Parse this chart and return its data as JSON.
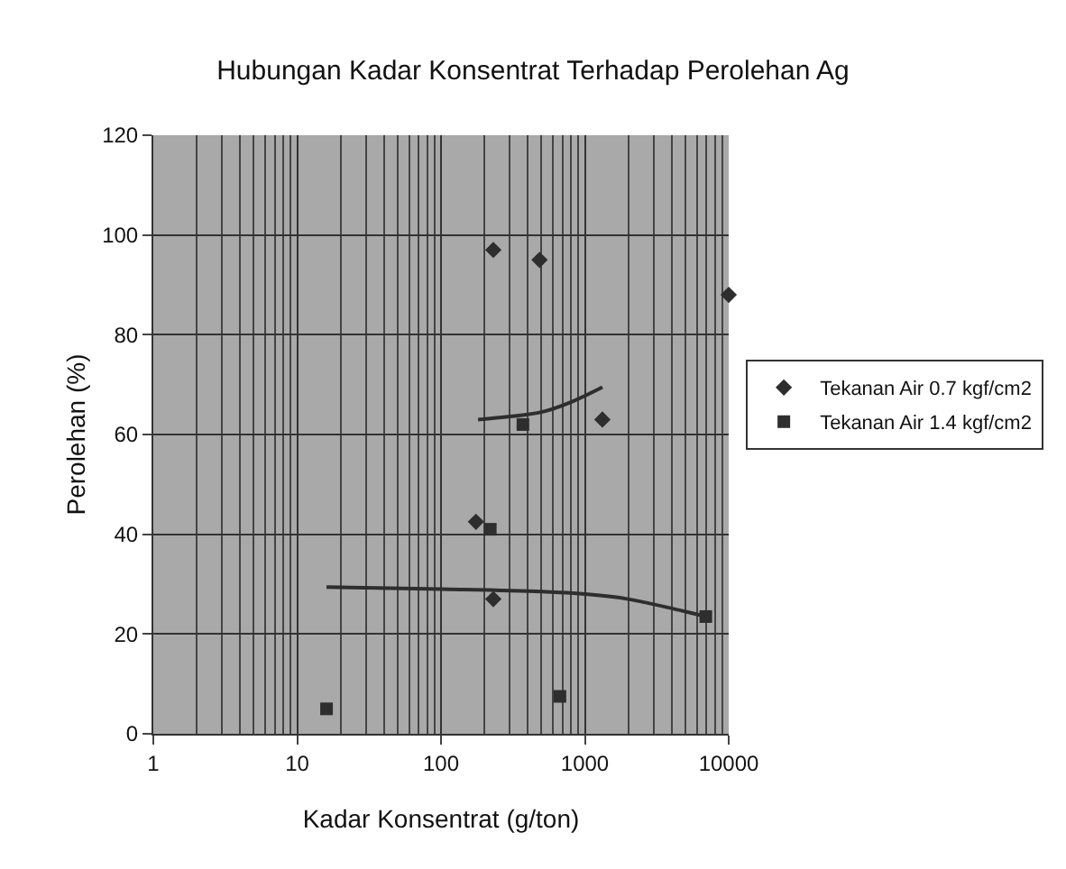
{
  "chart_data": {
    "type": "scatter",
    "title": "Hubungan Kadar Konsentrat Terhadap Perolehan Ag",
    "xlabel": "Kadar Konsentrat (g/ton)",
    "ylabel": "Perolehan (%)",
    "log": "x",
    "xlim": [
      1,
      10000
    ],
    "xticks": [
      1,
      10,
      100,
      1000,
      10000
    ],
    "ylim": [
      0,
      120
    ],
    "yticks": [
      0,
      20,
      40,
      60,
      80,
      100,
      120
    ],
    "grid": true,
    "legend": "right",
    "series": [
      {
        "name": "Tekanan Air 0.7 kgf/cm2",
        "color": "#2e2e2e",
        "marker": "diamond",
        "x": [
          231,
          484,
          1324,
          175,
          231,
          10000
        ],
        "values": [
          97,
          95,
          63,
          42.5,
          27,
          88
        ]
      },
      {
        "name": "Tekanan Air 1.4 kgf/cm2",
        "color": "#2e2e2e",
        "marker": "square",
        "x": [
          16,
          220,
          371,
          671,
          6930
        ],
        "values": [
          5,
          41,
          62,
          7.5,
          23.5
        ]
      },
      {
        "type": "line",
        "color": "#2e2e2e",
        "marker": "none",
        "line_style": "solid",
        "x": [
          181,
          300,
          500,
          800,
          1324
        ],
        "values": [
          63,
          63.6,
          64.5,
          66.5,
          69.5
        ]
      },
      {
        "type": "line",
        "color": "#2e2e2e",
        "marker": "none",
        "line_style": "solid",
        "x": [
          16,
          100,
          500,
          1000,
          2000,
          6930
        ],
        "values": [
          29.4,
          29,
          28.5,
          28,
          27,
          23.5
        ]
      }
    ]
  }
}
